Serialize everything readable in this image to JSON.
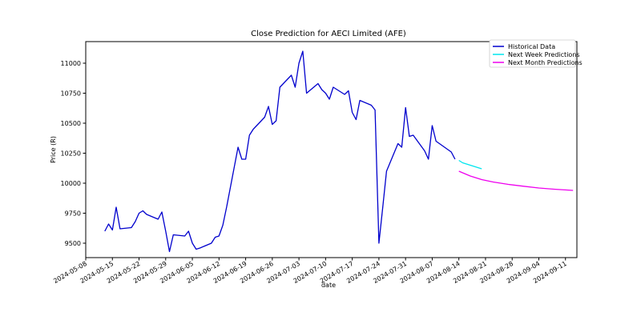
{
  "chart_data": {
    "type": "line",
    "title": "Close Prediction for AECI Limited (AFE)",
    "xlabel": "date",
    "ylabel": "Price (R)",
    "ylim": [
      9380,
      11180
    ],
    "xlim": [
      "2024-05-08",
      "2024-09-14"
    ],
    "x_ticks": [
      "2024-05-08",
      "2024-05-15",
      "2024-05-22",
      "2024-05-29",
      "2024-06-05",
      "2024-06-12",
      "2024-06-19",
      "2024-06-26",
      "2024-07-03",
      "2024-07-10",
      "2024-07-17",
      "2024-07-24",
      "2024-07-31",
      "2024-08-07",
      "2024-08-14",
      "2024-08-21",
      "2024-08-28",
      "2024-09-04",
      "2024-09-11"
    ],
    "y_ticks": [
      9500,
      9750,
      10000,
      10250,
      10500,
      10750,
      11000
    ],
    "grid": false,
    "legend_position": "top-right",
    "series": [
      {
        "name": "Historical Data",
        "color": "#0000cd",
        "points": [
          [
            "2024-05-13",
            9600
          ],
          [
            "2024-05-14",
            9660
          ],
          [
            "2024-05-15",
            9610
          ],
          [
            "2024-05-16",
            9800
          ],
          [
            "2024-05-17",
            9620
          ],
          [
            "2024-05-20",
            9630
          ],
          [
            "2024-05-21",
            9680
          ],
          [
            "2024-05-22",
            9750
          ],
          [
            "2024-05-23",
            9770
          ],
          [
            "2024-05-24",
            9740
          ],
          [
            "2024-05-27",
            9700
          ],
          [
            "2024-05-28",
            9760
          ],
          [
            "2024-05-29",
            9600
          ],
          [
            "2024-05-30",
            9430
          ],
          [
            "2024-05-31",
            9570
          ],
          [
            "2024-06-03",
            9560
          ],
          [
            "2024-06-04",
            9600
          ],
          [
            "2024-06-05",
            9500
          ],
          [
            "2024-06-06",
            9450
          ],
          [
            "2024-06-07",
            9460
          ],
          [
            "2024-06-10",
            9500
          ],
          [
            "2024-06-11",
            9550
          ],
          [
            "2024-06-12",
            9560
          ],
          [
            "2024-06-13",
            9650
          ],
          [
            "2024-06-14",
            9800
          ],
          [
            "2024-06-17",
            10300
          ],
          [
            "2024-06-18",
            10200
          ],
          [
            "2024-06-19",
            10200
          ],
          [
            "2024-06-20",
            10400
          ],
          [
            "2024-06-21",
            10450
          ],
          [
            "2024-06-24",
            10550
          ],
          [
            "2024-06-25",
            10640
          ],
          [
            "2024-06-26",
            10490
          ],
          [
            "2024-06-27",
            10520
          ],
          [
            "2024-06-28",
            10800
          ],
          [
            "2024-07-01",
            10900
          ],
          [
            "2024-07-02",
            10800
          ],
          [
            "2024-07-03",
            11000
          ],
          [
            "2024-07-04",
            11100
          ],
          [
            "2024-07-05",
            10750
          ],
          [
            "2024-07-08",
            10830
          ],
          [
            "2024-07-09",
            10780
          ],
          [
            "2024-07-10",
            10750
          ],
          [
            "2024-07-11",
            10700
          ],
          [
            "2024-07-12",
            10800
          ],
          [
            "2024-07-15",
            10740
          ],
          [
            "2024-07-16",
            10770
          ],
          [
            "2024-07-17",
            10590
          ],
          [
            "2024-07-18",
            10530
          ],
          [
            "2024-07-19",
            10690
          ],
          [
            "2024-07-22",
            10650
          ],
          [
            "2024-07-23",
            10610
          ],
          [
            "2024-07-24",
            9500
          ],
          [
            "2024-07-25",
            9800
          ],
          [
            "2024-07-26",
            10100
          ],
          [
            "2024-07-29",
            10330
          ],
          [
            "2024-07-30",
            10300
          ],
          [
            "2024-07-31",
            10630
          ],
          [
            "2024-08-01",
            10390
          ],
          [
            "2024-08-02",
            10400
          ],
          [
            "2024-08-05",
            10270
          ],
          [
            "2024-08-06",
            10200
          ],
          [
            "2024-08-07",
            10480
          ],
          [
            "2024-08-08",
            10350
          ],
          [
            "2024-08-12",
            10260
          ],
          [
            "2024-08-13",
            10200
          ]
        ]
      },
      {
        "name": "Next Week Predictions",
        "color": "#00e5ee",
        "points": [
          [
            "2024-08-14",
            10190
          ],
          [
            "2024-08-15",
            10170
          ],
          [
            "2024-08-16",
            10160
          ],
          [
            "2024-08-17",
            10150
          ],
          [
            "2024-08-18",
            10140
          ],
          [
            "2024-08-19",
            10130
          ],
          [
            "2024-08-20",
            10120
          ]
        ]
      },
      {
        "name": "Next Month Predictions",
        "color": "#ee00ee",
        "points": [
          [
            "2024-08-14",
            10100
          ],
          [
            "2024-08-17",
            10060
          ],
          [
            "2024-08-20",
            10030
          ],
          [
            "2024-08-23",
            10010
          ],
          [
            "2024-08-27",
            9990
          ],
          [
            "2024-08-31",
            9975
          ],
          [
            "2024-09-04",
            9960
          ],
          [
            "2024-09-08",
            9950
          ],
          [
            "2024-09-13",
            9940
          ]
        ]
      }
    ]
  }
}
